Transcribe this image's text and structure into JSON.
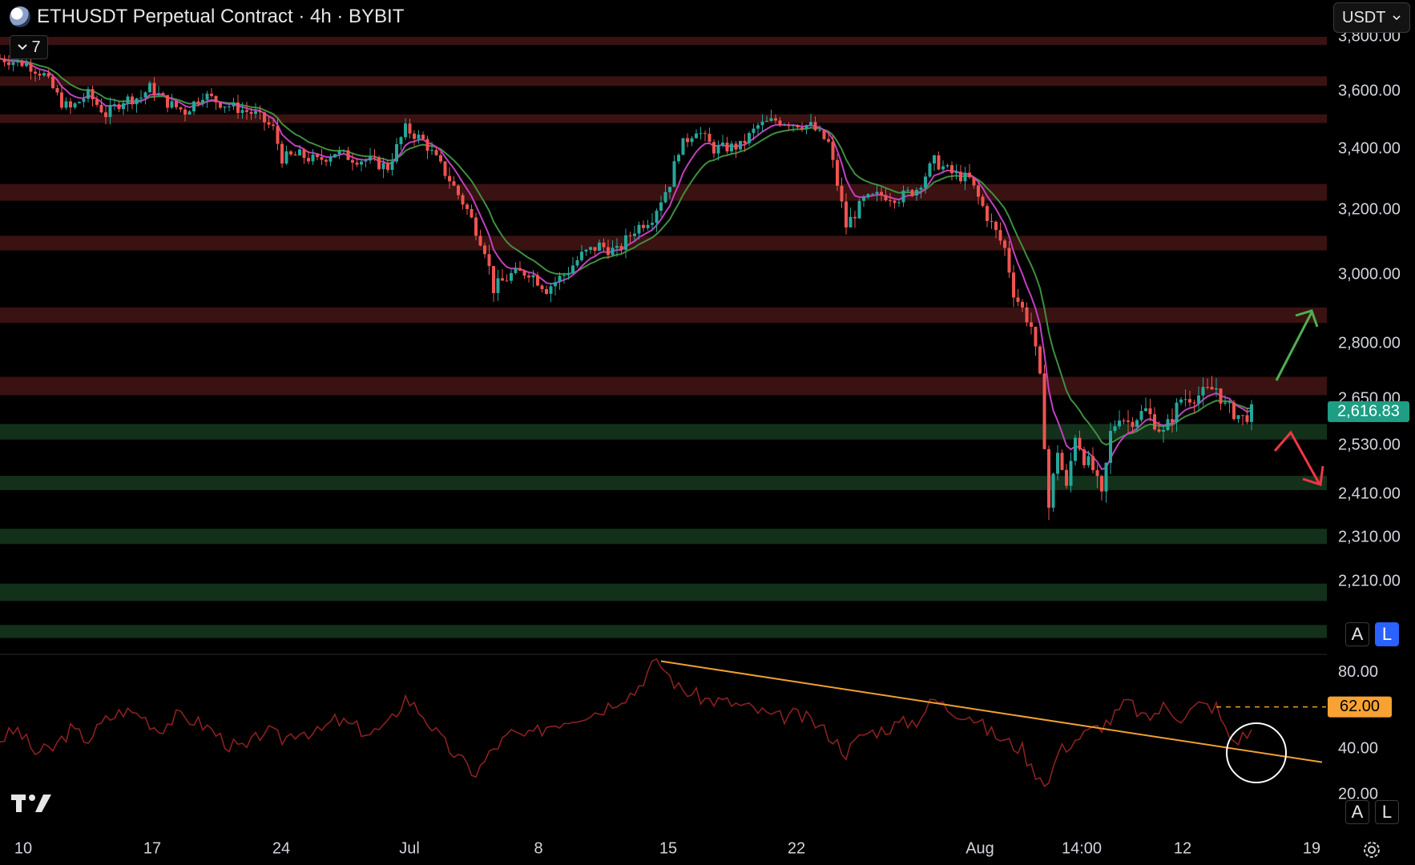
{
  "header": {
    "title": "ETHUSDT Perpetual Contract · 4h · BYBIT",
    "interval_label": "7",
    "currency": "USDT"
  },
  "scale_buttons": {
    "auto": "A",
    "log": "L"
  },
  "colors": {
    "background": "#000000",
    "resistance_zone": "#3a1212",
    "support_zone": "#13301a",
    "candle_up": "#26a69a",
    "candle_down": "#ef5350",
    "ema_fast": "#c040c0",
    "ema_slow": "#3f8f3f",
    "rsi_line": "#8c2020",
    "trendline": "#f0a030",
    "last_price_badge": "#1e9e84",
    "rsi_level_badge": "#f7a233",
    "arrow_up": "#4caf50",
    "arrow_down": "#f23645"
  },
  "icons": [
    "eth-logo-icon",
    "chevron-down-icon",
    "tradingview-logo-icon",
    "settings-gear-icon",
    "arrow-up-icon",
    "arrow-down-icon",
    "highlight-circle"
  ],
  "chart_data": [
    {
      "type": "candlestick",
      "symbol": "ETHUSDT",
      "timeframe": "4h",
      "y_ticks": [
        3600,
        3400,
        3200,
        3000,
        2800,
        2650,
        2530,
        2410,
        2310,
        2210
      ],
      "y_tick_labels": [
        "3,600.00",
        "3,400.00",
        "3,200.00",
        "3,000.00",
        "2,800.00",
        "2,650.00",
        "2,530.00",
        "2,410.00",
        "2,310.00",
        "2,210.00"
      ],
      "top_partial_tick": "3,800.00",
      "x_tick_labels": [
        "10",
        "17",
        "24",
        "Jul",
        "8",
        "15",
        "22",
        "Aug",
        "14:00",
        "12",
        "19"
      ],
      "last_price": 2616.83,
      "last_price_label": "2,616.83",
      "price_path": [
        [
          0,
          3720
        ],
        [
          3,
          3700
        ],
        [
          5,
          3660
        ],
        [
          7,
          3560
        ],
        [
          8,
          3540
        ],
        [
          10,
          3590
        ],
        [
          12,
          3520
        ],
        [
          14,
          3570
        ],
        [
          16,
          3580
        ],
        [
          17,
          3615
        ],
        [
          19,
          3560
        ],
        [
          21,
          3530
        ],
        [
          23,
          3590
        ],
        [
          25,
          3560
        ],
        [
          27,
          3540
        ],
        [
          29,
          3520
        ],
        [
          31,
          3470
        ],
        [
          32,
          3370
        ],
        [
          34,
          3380
        ],
        [
          36,
          3360
        ],
        [
          38,
          3390
        ],
        [
          40,
          3370
        ],
        [
          42,
          3360
        ],
        [
          44,
          3340
        ],
        [
          46,
          3470
        ],
        [
          48,
          3430
        ],
        [
          51,
          3300
        ],
        [
          53,
          3200
        ],
        [
          55,
          3080
        ],
        [
          56,
          2960
        ],
        [
          58,
          3000
        ],
        [
          60,
          3010
        ],
        [
          62,
          2960
        ],
        [
          64,
          3000
        ],
        [
          66,
          3060
        ],
        [
          68,
          3090
        ],
        [
          70,
          3070
        ],
        [
          72,
          3140
        ],
        [
          74,
          3180
        ],
        [
          76,
          3290
        ],
        [
          77,
          3400
        ],
        [
          79,
          3470
        ],
        [
          81,
          3400
        ],
        [
          84,
          3410
        ],
        [
          86,
          3480
        ],
        [
          88,
          3500
        ],
        [
          90,
          3490
        ],
        [
          92,
          3480
        ],
        [
          94,
          3420
        ],
        [
          96,
          3150
        ],
        [
          98,
          3230
        ],
        [
          100,
          3250
        ],
        [
          102,
          3240
        ],
        [
          104,
          3270
        ],
        [
          106,
          3360
        ],
        [
          108,
          3320
        ],
        [
          110,
          3300
        ],
        [
          112,
          3180
        ],
        [
          114,
          3080
        ],
        [
          115,
          2950
        ],
        [
          117,
          2850
        ],
        [
          118,
          2700
        ],
        [
          119,
          2380
        ],
        [
          120,
          2520
        ],
        [
          121,
          2420
        ],
        [
          122,
          2560
        ],
        [
          123,
          2500
        ],
        [
          124,
          2470
        ],
        [
          125,
          2400
        ],
        [
          126,
          2560
        ],
        [
          127,
          2610
        ],
        [
          128,
          2590
        ],
        [
          130,
          2620
        ],
        [
          132,
          2560
        ],
        [
          134,
          2650
        ],
        [
          136,
          2660
        ],
        [
          138,
          2680
        ],
        [
          139,
          2630
        ],
        [
          141,
          2600
        ],
        [
          142,
          2616.83
        ]
      ],
      "price_zones": [
        {
          "kind": "resistance",
          "from": 3770,
          "to": 3850
        },
        {
          "kind": "resistance",
          "from": 3620,
          "to": 3655
        },
        {
          "kind": "resistance",
          "from": 3490,
          "to": 3520
        },
        {
          "kind": "resistance",
          "from": 3230,
          "to": 3285
        },
        {
          "kind": "resistance",
          "from": 3075,
          "to": 3120
        },
        {
          "kind": "resistance",
          "from": 2860,
          "to": 2905
        },
        {
          "kind": "resistance",
          "from": 2660,
          "to": 2710
        },
        {
          "kind": "support",
          "from": 2545,
          "to": 2585
        },
        {
          "kind": "support",
          "from": 2420,
          "to": 2455
        },
        {
          "kind": "support",
          "from": 2295,
          "to": 2330
        },
        {
          "kind": "support",
          "from": 2165,
          "to": 2205
        },
        {
          "kind": "support",
          "from": 2080,
          "to": 2110
        }
      ]
    },
    {
      "type": "line",
      "indicator": "RSI",
      "y_ticks": [
        80,
        40
      ],
      "y_tick_labels": [
        "80.00",
        "40.00"
      ],
      "bottom_partial_tick": "20.00",
      "level_marker": 62,
      "level_marker_label": "62.00",
      "rsi_path": [
        [
          0,
          45
        ],
        [
          2,
          50
        ],
        [
          4,
          38
        ],
        [
          6,
          40
        ],
        [
          8,
          50
        ],
        [
          10,
          45
        ],
        [
          12,
          55
        ],
        [
          14,
          60
        ],
        [
          16,
          58
        ],
        [
          18,
          50
        ],
        [
          20,
          57
        ],
        [
          22,
          55
        ],
        [
          24,
          50
        ],
        [
          26,
          42
        ],
        [
          28,
          40
        ],
        [
          30,
          50
        ],
        [
          32,
          45
        ],
        [
          34,
          50
        ],
        [
          36,
          48
        ],
        [
          38,
          55
        ],
        [
          40,
          52
        ],
        [
          42,
          48
        ],
        [
          44,
          52
        ],
        [
          46,
          67
        ],
        [
          48,
          58
        ],
        [
          50,
          45
        ],
        [
          52,
          35
        ],
        [
          54,
          27
        ],
        [
          56,
          40
        ],
        [
          58,
          48
        ],
        [
          60,
          46
        ],
        [
          62,
          52
        ],
        [
          64,
          55
        ],
        [
          66,
          58
        ],
        [
          68,
          60
        ],
        [
          70,
          66
        ],
        [
          72,
          70
        ],
        [
          74,
          84
        ],
        [
          75,
          84
        ],
        [
          77,
          72
        ],
        [
          80,
          66
        ],
        [
          83,
          64
        ],
        [
          86,
          60
        ],
        [
          88,
          56
        ],
        [
          90,
          58
        ],
        [
          92,
          55
        ],
        [
          94,
          48
        ],
        [
          96,
          38
        ],
        [
          98,
          48
        ],
        [
          100,
          50
        ],
        [
          102,
          53
        ],
        [
          104,
          55
        ],
        [
          106,
          66
        ],
        [
          108,
          60
        ],
        [
          110,
          58
        ],
        [
          112,
          50
        ],
        [
          114,
          44
        ],
        [
          116,
          40
        ],
        [
          117,
          30
        ],
        [
          118,
          26
        ],
        [
          119,
          22
        ],
        [
          120,
          38
        ],
        [
          122,
          45
        ],
        [
          124,
          50
        ],
        [
          126,
          55
        ],
        [
          128,
          65
        ],
        [
          130,
          55
        ],
        [
          132,
          62
        ],
        [
          134,
          57
        ],
        [
          136,
          63
        ],
        [
          138,
          62
        ],
        [
          139,
          50
        ],
        [
          140,
          44
        ],
        [
          142,
          49
        ]
      ],
      "trendline": [
        [
          75,
          86
        ],
        [
          150,
          33
        ]
      ]
    }
  ]
}
